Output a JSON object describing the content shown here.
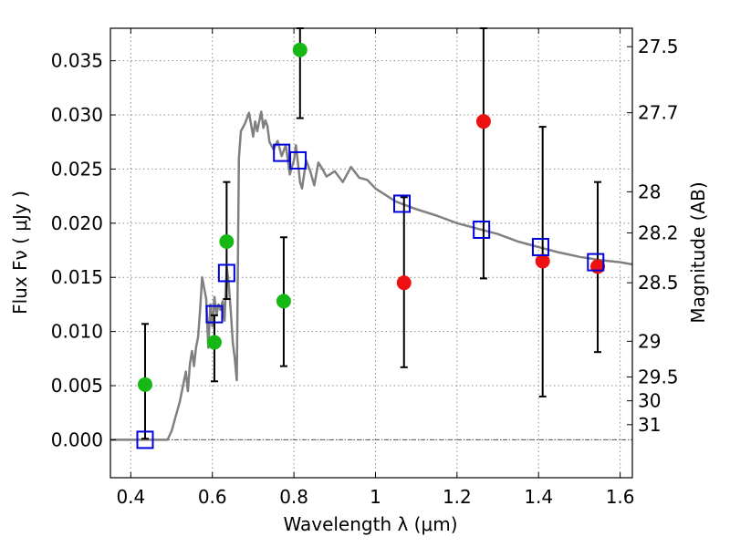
{
  "chart_data": {
    "type": "scatter",
    "xlabel": "Wavelength  λ (μm)",
    "ylabel_left": "Flux  Fν  ( μJy )",
    "ylabel_right": "Magnitude (AB)",
    "xlim": [
      0.35,
      1.63
    ],
    "ylim": [
      -0.0035,
      0.038
    ],
    "x_ticks": [
      0.4,
      0.6,
      0.8,
      1.0,
      1.2,
      1.4,
      1.6
    ],
    "x_tick_labels": [
      "0.4",
      "0.6",
      "0.8",
      "1",
      "1.2",
      "1.4",
      "1.6"
    ],
    "y_ticks": [
      0.0,
      0.005,
      0.01,
      0.015,
      0.02,
      0.025,
      0.03,
      0.035
    ],
    "y_tick_labels": [
      "0.000",
      "0.005",
      "0.010",
      "0.015",
      "0.020",
      "0.025",
      "0.030",
      "0.035"
    ],
    "right_ticks": [
      {
        "label": "27.5",
        "flux": 0.0363
      },
      {
        "label": "27.7",
        "flux": 0.0302
      },
      {
        "label": "28",
        "flux": 0.0229
      },
      {
        "label": "28.2",
        "flux": 0.0191
      },
      {
        "label": "28.5",
        "flux": 0.0145
      },
      {
        "label": "29",
        "flux": 0.0091
      },
      {
        "label": "29.5",
        "flux": 0.0058
      },
      {
        "label": "30",
        "flux": 0.0036
      },
      {
        "label": "31",
        "flux": 0.0014
      }
    ],
    "grid": true,
    "zero_line": true,
    "colors": {
      "model": "#808080",
      "green": "#16b816",
      "red": "#ee1111",
      "box": "#0000dd",
      "errorbar": "#000000"
    },
    "model_spectrum": {
      "x": [
        0.35,
        0.49,
        0.5,
        0.52,
        0.535,
        0.54,
        0.545,
        0.55,
        0.555,
        0.56,
        0.565,
        0.57,
        0.575,
        0.585,
        0.59,
        0.595,
        0.6,
        0.605,
        0.61,
        0.615,
        0.62,
        0.625,
        0.63,
        0.635,
        0.64,
        0.645,
        0.65,
        0.655,
        0.66,
        0.665,
        0.67,
        0.68,
        0.69,
        0.7,
        0.705,
        0.71,
        0.72,
        0.725,
        0.73,
        0.735,
        0.74,
        0.75,
        0.76,
        0.77,
        0.78,
        0.79,
        0.8,
        0.805,
        0.81,
        0.815,
        0.82,
        0.83,
        0.84,
        0.85,
        0.86,
        0.87,
        0.88,
        0.9,
        0.92,
        0.94,
        0.96,
        0.98,
        1.0,
        1.05,
        1.1,
        1.15,
        1.2,
        1.25,
        1.3,
        1.35,
        1.4,
        1.45,
        1.5,
        1.55,
        1.6,
        1.63
      ],
      "y": [
        0.0,
        0.0,
        0.0008,
        0.0035,
        0.0063,
        0.0045,
        0.007,
        0.0082,
        0.0068,
        0.0085,
        0.0095,
        0.012,
        0.015,
        0.013,
        0.0085,
        0.0125,
        0.0105,
        0.0132,
        0.0115,
        0.0125,
        0.012,
        0.0128,
        0.011,
        0.016,
        0.0145,
        0.012,
        0.009,
        0.0075,
        0.0055,
        0.026,
        0.0285,
        0.0292,
        0.0302,
        0.028,
        0.0294,
        0.0285,
        0.0303,
        0.0288,
        0.0295,
        0.029,
        0.0275,
        0.0268,
        0.0276,
        0.0262,
        0.0272,
        0.0245,
        0.0258,
        0.0272,
        0.0255,
        0.0238,
        0.0232,
        0.0258,
        0.0248,
        0.0235,
        0.0256,
        0.025,
        0.0243,
        0.0248,
        0.0238,
        0.0252,
        0.0242,
        0.024,
        0.0232,
        0.022,
        0.0213,
        0.0207,
        0.02,
        0.0195,
        0.019,
        0.0183,
        0.0178,
        0.0173,
        0.0169,
        0.0166,
        0.0164,
        0.0162
      ]
    },
    "series": [
      {
        "marker": "circle",
        "color": "green",
        "points": [
          {
            "x": 0.435,
            "y": 0.0051,
            "err": [
              0.0001,
              0.0107
            ]
          },
          {
            "x": 0.605,
            "y": 0.009,
            "err": [
              0.0054,
              0.0115
            ]
          },
          {
            "x": 0.635,
            "y": 0.0183,
            "err": [
              0.013,
              0.0238
            ]
          },
          {
            "x": 0.775,
            "y": 0.0128,
            "err": [
              0.0068,
              0.0187
            ]
          },
          {
            "x": 0.815,
            "y": 0.036,
            "err": [
              0.0297,
              0.038
            ]
          }
        ]
      },
      {
        "marker": "circle",
        "color": "red",
        "points": [
          {
            "x": 1.07,
            "y": 0.0145,
            "err": [
              0.0067,
              0.0224
            ]
          },
          {
            "x": 1.265,
            "y": 0.0294,
            "err": [
              0.0149,
              0.038
            ]
          },
          {
            "x": 1.41,
            "y": 0.0165,
            "err": [
              0.004,
              0.0289
            ]
          },
          {
            "x": 1.545,
            "y": 0.016,
            "err": [
              0.0081,
              0.0238
            ]
          }
        ]
      },
      {
        "marker": "square",
        "color": "box",
        "points": [
          {
            "x": 0.435,
            "y": 0.0
          },
          {
            "x": 0.605,
            "y": 0.0116
          },
          {
            "x": 0.635,
            "y": 0.0154
          },
          {
            "x": 0.77,
            "y": 0.0265
          },
          {
            "x": 0.81,
            "y": 0.0258
          },
          {
            "x": 1.065,
            "y": 0.0218
          },
          {
            "x": 1.26,
            "y": 0.0194
          },
          {
            "x": 1.405,
            "y": 0.0178
          },
          {
            "x": 1.54,
            "y": 0.0164
          }
        ]
      }
    ]
  }
}
